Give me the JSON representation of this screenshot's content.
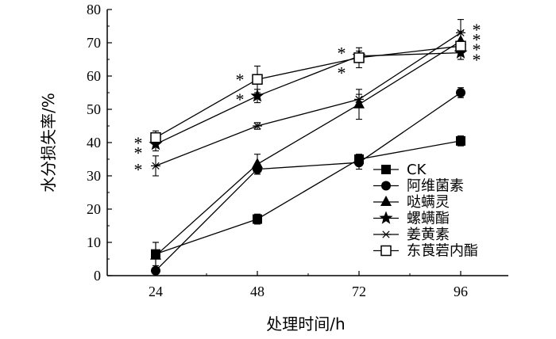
{
  "chart_data": {
    "type": "line",
    "xlabel": "处理时间/h",
    "ylabel": "水分损失率/%",
    "x": [
      24,
      48,
      72,
      96
    ],
    "x_ticks": [
      "24",
      "48",
      "72",
      "96"
    ],
    "ylim": [
      0,
      80
    ],
    "y_ticks": [
      "0",
      "10",
      "20",
      "30",
      "40",
      "50",
      "60",
      "70",
      "80"
    ],
    "grid": false,
    "legend_position": "bottom-right",
    "series": [
      {
        "name": "CK",
        "marker": "filled-square",
        "values": [
          6.5,
          17,
          35,
          40.5
        ],
        "errors": [
          3.5,
          1.5,
          1.5,
          1.5
        ]
      },
      {
        "name": "阿维菌素",
        "marker": "filled-circle",
        "values": [
          1.5,
          32,
          34,
          55
        ],
        "errors": [
          0.5,
          1.5,
          2,
          1.5
        ]
      },
      {
        "name": "哒螨灵",
        "marker": "filled-triangle",
        "values": [
          6,
          33.5,
          51.5,
          70.5
        ],
        "errors": [
          4,
          3,
          4.5,
          3
        ]
      },
      {
        "name": "螺螨酯",
        "marker": "filled-star",
        "values": [
          39.5,
          54,
          66,
          67
        ],
        "errors": [
          2,
          2,
          1.5,
          2
        ]
      },
      {
        "name": "姜黄素",
        "marker": "asterisk",
        "values": [
          33,
          45,
          53,
          73
        ],
        "errors": [
          3,
          1,
          1.5,
          4
        ]
      },
      {
        "name": "东莨菪内酯",
        "marker": "open-square",
        "values": [
          41.5,
          59,
          65.5,
          69
        ],
        "errors": [
          2,
          4,
          3,
          4
        ]
      }
    ],
    "annotations": [
      {
        "x": 24,
        "text": "*",
        "y": 41
      },
      {
        "x": 24,
        "text": "*",
        "y": 38
      },
      {
        "x": 24,
        "text": "*",
        "y": 33
      },
      {
        "x": 48,
        "text": "*",
        "y": 60
      },
      {
        "x": 48,
        "text": "*",
        "y": 54
      },
      {
        "x": 72,
        "text": "*",
        "y": 68
      },
      {
        "x": 72,
        "text": "*",
        "y": 62
      },
      {
        "x": 96,
        "text": "*",
        "y": 75
      },
      {
        "x": 96,
        "text": "*",
        "y": 72
      },
      {
        "x": 96,
        "text": "*",
        "y": 69
      },
      {
        "x": 96,
        "text": "*",
        "y": 66
      }
    ]
  }
}
